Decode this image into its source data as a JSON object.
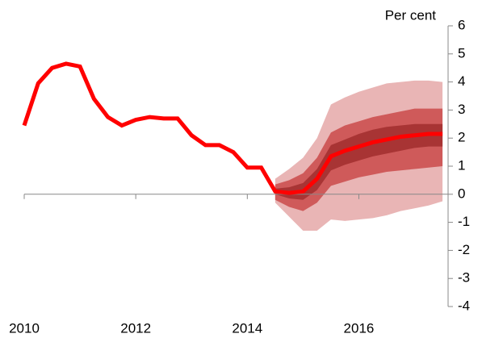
{
  "chart_data": {
    "type": "line",
    "y_label": "Per cent",
    "x": [
      2010,
      2010.25,
      2010.5,
      2010.75,
      2011,
      2011.25,
      2011.5,
      2011.75,
      2012,
      2012.25,
      2012.5,
      2012.75,
      2013,
      2013.25,
      2013.5,
      2013.75,
      2014,
      2014.25,
      2014.5,
      2014.75,
      2015,
      2015.25,
      2015.5,
      2015.75,
      2016,
      2016.25,
      2016.5,
      2016.75,
      2017,
      2017.25,
      2017.5
    ],
    "series": [
      {
        "color": "#ff0000",
        "values": [
          2.45,
          3.95,
          4.5,
          4.65,
          4.55,
          3.4,
          2.75,
          2.45,
          2.65,
          2.75,
          2.7,
          2.7,
          2.1,
          1.75,
          1.75,
          1.5,
          0.95,
          0.95,
          0.1,
          0.05,
          0.1,
          0.55,
          1.35,
          1.55,
          1.7,
          1.85,
          1.95,
          2.05,
          2.1,
          2.15,
          2.15
        ]
      }
    ],
    "fan": {
      "x": [
        2014.5,
        2014.75,
        2015,
        2015.25,
        2015.5,
        2015.75,
        2016,
        2016.25,
        2016.5,
        2016.75,
        2017,
        2017.25,
        2017.5
      ],
      "bands": [
        {
          "color": "#e9b5b5",
          "lower": [
            -0.3,
            -0.8,
            -1.3,
            -1.3,
            -0.9,
            -0.95,
            -0.9,
            -0.85,
            -0.75,
            -0.6,
            -0.5,
            -0.4,
            -0.25
          ],
          "upper": [
            0.55,
            0.9,
            1.3,
            2.0,
            3.2,
            3.45,
            3.65,
            3.8,
            3.95,
            4.0,
            4.05,
            4.05,
            4.0
          ]
        },
        {
          "color": "#cf5a5a",
          "lower": [
            -0.2,
            -0.45,
            -0.6,
            -0.3,
            0.3,
            0.45,
            0.6,
            0.7,
            0.8,
            0.85,
            0.9,
            0.95,
            1.0
          ],
          "upper": [
            0.35,
            0.5,
            0.75,
            1.3,
            2.2,
            2.45,
            2.6,
            2.75,
            2.85,
            2.95,
            3.05,
            3.05,
            3.05
          ]
        },
        {
          "color": "#a83434",
          "lower": [
            0.0,
            -0.15,
            -0.2,
            0.15,
            0.85,
            1.05,
            1.2,
            1.35,
            1.45,
            1.55,
            1.65,
            1.7,
            1.7
          ],
          "upper": [
            0.2,
            0.25,
            0.4,
            0.9,
            1.75,
            1.95,
            2.15,
            2.3,
            2.4,
            2.45,
            2.5,
            2.5,
            2.5
          ]
        }
      ]
    },
    "xlim": [
      2010,
      2017.6
    ],
    "xticks": [
      2010,
      2012,
      2014,
      2016
    ],
    "ylim": [
      -4,
      6
    ],
    "yticks": [
      -4,
      -3,
      -2,
      -1,
      0,
      1,
      2,
      3,
      4,
      5,
      6
    ]
  }
}
